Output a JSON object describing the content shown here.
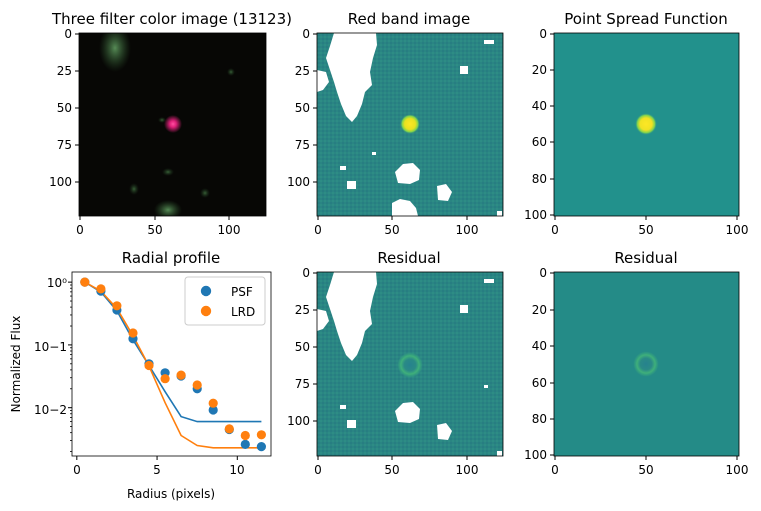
{
  "chart_data": [
    {
      "type": "image",
      "title": "Three filter color image (13123)",
      "xticks": [
        "0",
        "50",
        "100"
      ],
      "yticks": [
        "0",
        "25",
        "50",
        "75",
        "100"
      ],
      "xlim": [
        0,
        125
      ],
      "ylim": [
        0,
        125
      ],
      "colors": {
        "background": "#060604",
        "source": "#ff2f8c",
        "faint_sources": "#3c6a3c"
      }
    },
    {
      "type": "image",
      "title": "Red band image",
      "xticks": [
        "0",
        "50",
        "100"
      ],
      "yticks": [
        "0",
        "25",
        "50",
        "75",
        "100"
      ],
      "xlim": [
        0,
        125
      ],
      "ylim": [
        0,
        125
      ],
      "colors": {
        "background": "#2a8583",
        "source": "#f6e120",
        "masked": "#ffffff"
      }
    },
    {
      "type": "image",
      "title": "Point Spread Function",
      "xticks": [
        "0",
        "50",
        "100"
      ],
      "yticks": [
        "0",
        "20",
        "40",
        "60",
        "80",
        "100"
      ],
      "xlim": [
        0,
        100
      ],
      "ylim": [
        0,
        100
      ],
      "colors": {
        "background": "#22918c",
        "source": "#f6e120"
      }
    },
    {
      "type": "scatter",
      "title": "Radial profile",
      "xlabel": "Radius (pixels)",
      "ylabel": "Normalized Flux",
      "yscale": "log",
      "xlim": [
        -0.3,
        12.1
      ],
      "ylim": [
        0.0017,
        1.45
      ],
      "xticks": [
        "0",
        "5",
        "10"
      ],
      "yticks": [
        "10−2",
        "10−1",
        "10⁰"
      ],
      "legend_position": "top-right",
      "series": [
        {
          "name": "PSF",
          "color": "#1f77b4",
          "x": [
            0.5,
            1.5,
            2.5,
            3.5,
            4.5,
            5.5,
            6.5,
            7.5,
            8.5,
            9.5,
            10.5,
            11.5
          ],
          "points": [
            1.0,
            0.72,
            0.36,
            0.125,
            0.05,
            0.036,
            0.032,
            0.02,
            0.0092,
            0.0045,
            0.0026,
            0.0024
          ],
          "line": [
            1.0,
            0.7,
            0.35,
            0.12,
            0.047,
            0.018,
            0.0072,
            0.006,
            0.006,
            0.006,
            0.006,
            0.006
          ]
        },
        {
          "name": "LRD",
          "color": "#ff7f0e",
          "x": [
            0.5,
            1.5,
            2.5,
            3.5,
            4.5,
            5.5,
            6.5,
            7.5,
            8.5,
            9.5,
            10.5,
            11.5
          ],
          "points": [
            1.0,
            0.78,
            0.42,
            0.155,
            0.047,
            0.029,
            0.033,
            0.023,
            0.0118,
            0.0046,
            0.0036,
            0.0037
          ],
          "line": [
            1.0,
            0.72,
            0.38,
            0.14,
            0.046,
            0.012,
            0.0036,
            0.0025,
            0.0023,
            0.0023,
            0.0023,
            0.0023
          ]
        }
      ]
    },
    {
      "type": "image",
      "title": "Residual",
      "xticks": [
        "0",
        "50",
        "100"
      ],
      "yticks": [
        "0",
        "25",
        "50",
        "75",
        "100"
      ],
      "xlim": [
        0,
        125
      ],
      "ylim": [
        0,
        125
      ],
      "colors": {
        "background": "#2a8583",
        "ring": "#3aa57e",
        "masked": "#ffffff"
      }
    },
    {
      "type": "image",
      "title": "Residual",
      "xticks": [
        "0",
        "50",
        "100"
      ],
      "yticks": [
        "0",
        "20",
        "40",
        "60",
        "80",
        "100"
      ],
      "xlim": [
        0,
        100
      ],
      "ylim": [
        0,
        100
      ],
      "colors": {
        "background": "#248b87",
        "ring": "#3aa57e"
      }
    }
  ]
}
